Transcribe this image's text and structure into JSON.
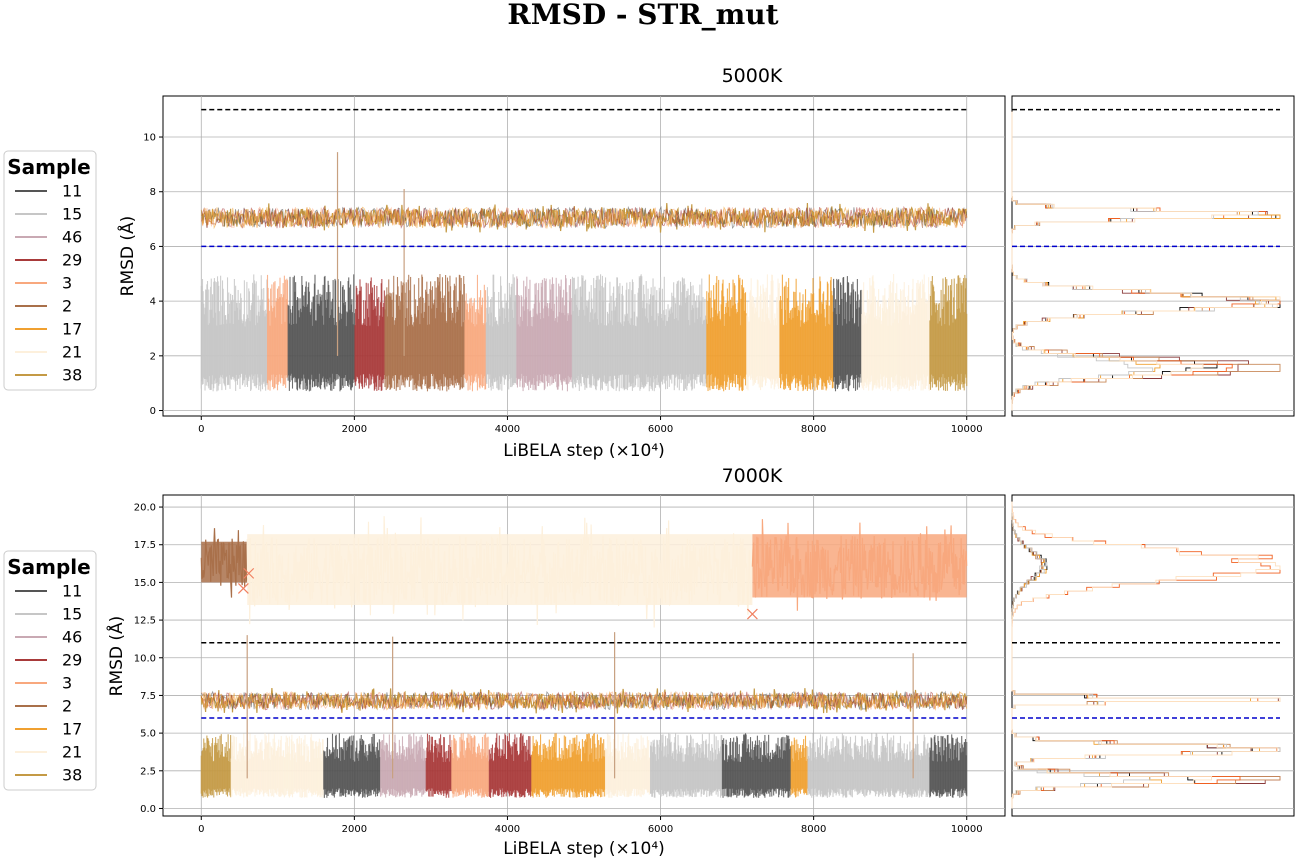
{
  "figure_title": "RMSD - STR_mut",
  "legend": {
    "title": "Sample",
    "entries": [
      {
        "label": "11",
        "color": "#555555"
      },
      {
        "label": "15",
        "color": "#c6c6c6"
      },
      {
        "label": "46",
        "color": "#c9a9b3"
      },
      {
        "label": "29",
        "color": "#a83a3a"
      },
      {
        "label": "3",
        "color": "#f8a87e"
      },
      {
        "label": "2",
        "color": "#a9704a"
      },
      {
        "label": "17",
        "color": "#f0a030"
      },
      {
        "label": "21",
        "color": "#fdf0dc"
      },
      {
        "label": "38",
        "color": "#c49a45"
      }
    ]
  },
  "chart_data": [
    {
      "type": "line",
      "title": "5000K",
      "xlabel": "LiBELA step (×10⁴)",
      "ylabel": "RMSD (Å)",
      "xlim": [
        -500,
        10500
      ],
      "ylim": [
        -0.2,
        11.5
      ],
      "xticks": [
        0,
        2000,
        4000,
        6000,
        8000,
        10000
      ],
      "yticks": [
        0,
        2,
        4,
        6,
        8,
        10
      ],
      "grid": true,
      "reference_lines": [
        {
          "y": 11,
          "color": "#000000",
          "style": "dashed"
        },
        {
          "y": 6,
          "color": "#0000cc",
          "style": "dashed"
        }
      ],
      "series_bands": [
        {
          "name": "38",
          "low": 6.5,
          "high": 7.6,
          "x_range": [
            0,
            10000
          ]
        },
        {
          "name": "11",
          "low": 0.7,
          "high": 5.0,
          "x_range": [
            0,
            10000
          ]
        }
      ],
      "spikes": [
        {
          "x": 1780,
          "y": 9.45
        },
        {
          "x": 2650,
          "y": 8.1
        }
      ],
      "histogram_peaks": [
        1.5,
        3.9,
        7.1
      ]
    },
    {
      "type": "line",
      "title": "7000K",
      "xlabel": "LiBELA step (×10⁴)",
      "ylabel": "RMSD (Å)",
      "xlim": [
        -500,
        10500
      ],
      "ylim": [
        -0.5,
        20.8
      ],
      "xticks": [
        0,
        2000,
        4000,
        6000,
        8000,
        10000
      ],
      "yticks": [
        0.0,
        2.5,
        5.0,
        7.5,
        10.0,
        12.5,
        15.0,
        17.5,
        20.0
      ],
      "grid": true,
      "reference_lines": [
        {
          "y": 11,
          "color": "#000000",
          "style": "dashed"
        },
        {
          "y": 6,
          "color": "#0000cc",
          "style": "dashed"
        }
      ],
      "series_bands": [
        {
          "name": "2",
          "low": 13.5,
          "high": 19.0,
          "x_range": [
            0,
            600
          ]
        },
        {
          "name": "21",
          "low": 12.0,
          "high": 19.5,
          "x_range": [
            600,
            7200
          ]
        },
        {
          "name": "3",
          "low": 12.5,
          "high": 19.5,
          "x_range": [
            7200,
            10000
          ]
        },
        {
          "name": "38",
          "low": 6.3,
          "high": 8.0,
          "x_range": [
            0,
            10000
          ]
        },
        {
          "name": "11",
          "low": 0.7,
          "high": 5.0,
          "x_range": [
            0,
            10000
          ]
        }
      ],
      "transition_markers": [
        {
          "x": 550,
          "y": 14.6
        },
        {
          "x": 620,
          "y": 15.6
        },
        {
          "x": 7200,
          "y": 12.9
        }
      ],
      "spikes": [
        {
          "x": 600,
          "y": 11.5
        },
        {
          "x": 2500,
          "y": 11.4
        },
        {
          "x": 5400,
          "y": 11.7
        },
        {
          "x": 9300,
          "y": 10.3
        }
      ],
      "histogram_peaks": [
        1.8,
        3.8,
        7.1,
        16.0
      ]
    }
  ]
}
